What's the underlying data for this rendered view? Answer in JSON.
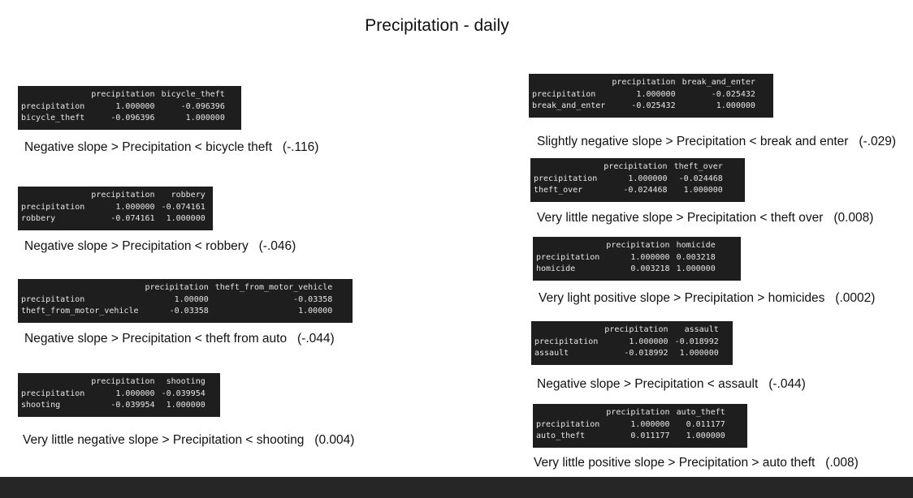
{
  "title": "Precipitation - daily",
  "panels": [
    {
      "columns": [
        "precipitation",
        "bicycle_theft"
      ],
      "rows": [
        {
          "label": "precipitation",
          "values": [
            "1.000000",
            "-0.096396"
          ]
        },
        {
          "label": "bicycle_theft",
          "values": [
            "-0.096396",
            "1.000000"
          ]
        }
      ],
      "caption": "Negative slope > Precipitation < bicycle theft   (-.116)"
    },
    {
      "columns": [
        "precipitation",
        "robbery"
      ],
      "rows": [
        {
          "label": "precipitation",
          "values": [
            "1.000000",
            "-0.074161"
          ]
        },
        {
          "label": "robbery",
          "values": [
            "-0.074161",
            "1.000000"
          ]
        }
      ],
      "caption": "Negative slope > Precipitation < robbery   (-.046)"
    },
    {
      "columns": [
        "precipitation",
        "theft_from_motor_vehicle"
      ],
      "rows": [
        {
          "label": "precipitation",
          "values": [
            "1.00000",
            "-0.03358"
          ]
        },
        {
          "label": "theft_from_motor_vehicle",
          "values": [
            "-0.03358",
            "1.00000"
          ]
        }
      ],
      "caption": "Negative slope > Precipitation < theft from auto   (-.044)"
    },
    {
      "columns": [
        "precipitation",
        "shooting"
      ],
      "rows": [
        {
          "label": "precipitation",
          "values": [
            "1.000000",
            "-0.039954"
          ]
        },
        {
          "label": "shooting",
          "values": [
            "-0.039954",
            "1.000000"
          ]
        }
      ],
      "caption": "Very little negative slope > Precipitation < shooting   (0.004)"
    },
    {
      "columns": [
        "precipitation",
        "break_and_enter"
      ],
      "rows": [
        {
          "label": "precipitation",
          "values": [
            "1.000000",
            "-0.025432"
          ]
        },
        {
          "label": "break_and_enter",
          "values": [
            "-0.025432",
            "1.000000"
          ]
        }
      ],
      "caption": "Slightly negative slope > Precipitation < break and enter   (-.029)"
    },
    {
      "columns": [
        "precipitation",
        "theft_over"
      ],
      "rows": [
        {
          "label": "precipitation",
          "values": [
            "1.000000",
            "-0.024468"
          ]
        },
        {
          "label": "theft_over",
          "values": [
            "-0.024468",
            "1.000000"
          ]
        }
      ],
      "caption": "Very little negative slope > Precipitation < theft over   (0.008)"
    },
    {
      "columns": [
        "precipitation",
        "homicide"
      ],
      "rows": [
        {
          "label": "precipitation",
          "values": [
            "1.000000",
            "0.003218"
          ]
        },
        {
          "label": "homicide",
          "values": [
            "0.003218",
            "1.000000"
          ]
        }
      ],
      "caption": "Very light positive slope > Precipitation > homicides   (.0002)"
    },
    {
      "columns": [
        "precipitation",
        "assault"
      ],
      "rows": [
        {
          "label": "precipitation",
          "values": [
            "1.000000",
            "-0.018992"
          ]
        },
        {
          "label": "assault",
          "values": [
            "-0.018992",
            "1.000000"
          ]
        }
      ],
      "caption": "Negative slope > Precipitation < assault   (-.044)"
    },
    {
      "columns": [
        "precipitation",
        "auto_theft"
      ],
      "rows": [
        {
          "label": "precipitation",
          "values": [
            "1.000000",
            "0.011177"
          ]
        },
        {
          "label": "auto_theft",
          "values": [
            "0.011177",
            "1.000000"
          ]
        }
      ],
      "caption": "Very little positive slope > Precipitation > auto theft   (.008)"
    }
  ]
}
